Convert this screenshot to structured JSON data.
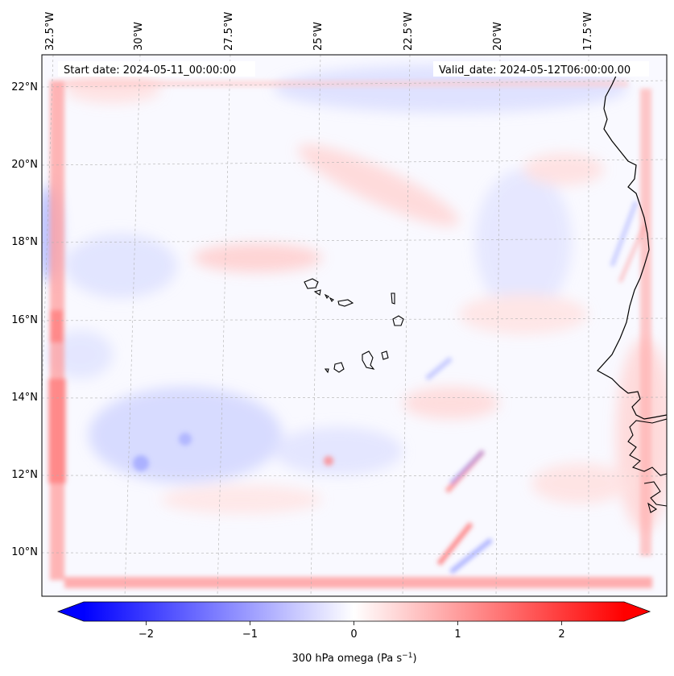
{
  "chart_data": {
    "type": "heatmap",
    "field": "300 hPa omega",
    "start_date_text": "Start date: 2024-05-11_00:00:00",
    "valid_date_text": "Valid_date: 2024-05-12T06:00:00.00",
    "lon_ticks": [
      "32.5°W",
      "30°W",
      "27.5°W",
      "25°W",
      "22.5°W",
      "20°W",
      "17.5°W"
    ],
    "lat_ticks": [
      "22°N",
      "20°N",
      "18°N",
      "16°N",
      "14°N",
      "12°N",
      "10°N"
    ],
    "colorbar": {
      "title": "300 hPa omega (Pa s",
      "unit_superscript": "−1",
      "title_close": ")",
      "range": [
        -2.6,
        2.6
      ],
      "tick_values": [
        -2,
        -1,
        0,
        1,
        2
      ],
      "tick_labels": [
        "−2",
        "−1",
        "0",
        "1",
        "2"
      ],
      "colormap": "bwr",
      "extend": "both"
    }
  },
  "colors": {
    "negative": "#0000ff",
    "zero": "#ffffff",
    "positive": "#ff0000",
    "coastline": "#000000",
    "gridline": "#b0b0b0"
  }
}
